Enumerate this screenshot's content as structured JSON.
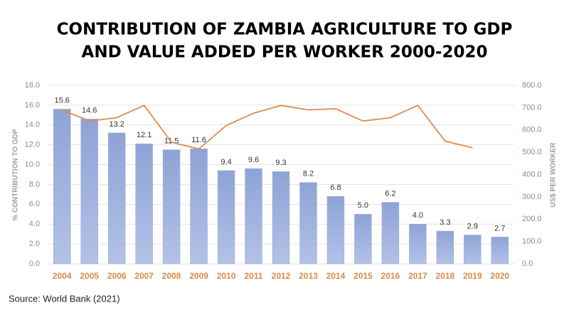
{
  "chart_data": {
    "type": "bar",
    "title": [
      "CONTRIBUTION OF ZAMBIA AGRICULTURE TO GDP",
      "AND VALUE ADDED PER WORKER 2000-2020"
    ],
    "y_label": "% CONTRIBUTION TO GDP",
    "y2_label": "US$ PER WORKER",
    "source": "Source: World Bank (2021)",
    "categories": [
      "2004",
      "2005",
      "2006",
      "2007",
      "2008",
      "2009",
      "2010",
      "2011",
      "2012",
      "2013",
      "2014",
      "2015",
      "2016",
      "2017",
      "2018",
      "2019",
      "2020"
    ],
    "series": [
      {
        "type": "bar",
        "color": "#9badda",
        "values": [
          15.6,
          14.6,
          13.2,
          12.1,
          11.5,
          11.6,
          9.4,
          9.6,
          9.3,
          8.2,
          6.8,
          5.0,
          6.2,
          4.0,
          3.3,
          2.9,
          2.7
        ],
        "value_labels": [
          "15.6",
          "14.6",
          "13.2",
          "12.1",
          "11.5",
          "11.6",
          "9.4",
          "9.6",
          "9.3",
          "8.2",
          "6.8",
          "5.0",
          "6.2",
          "4.0",
          "3.3",
          "2.9",
          "2.7"
        ]
      },
      {
        "type": "line",
        "axis": "y2",
        "color": "#e08a4e",
        "values": [
          690,
          640,
          655,
          710,
          545,
          515,
          620,
          675,
          710,
          690,
          695,
          640,
          655,
          710,
          550,
          520,
          null
        ]
      }
    ],
    "ylim": [
      0,
      18
    ],
    "yticks": [
      {
        "value": 0,
        "label": "0.0"
      },
      {
        "value": 2,
        "label": "2.0"
      },
      {
        "value": 4,
        "label": "4.0"
      },
      {
        "value": 6,
        "label": "6.0"
      },
      {
        "value": 8,
        "label": "8.0"
      },
      {
        "value": 10,
        "label": "10.0"
      },
      {
        "value": 12,
        "label": "12.0"
      },
      {
        "value": 14,
        "label": "14.0"
      },
      {
        "value": 16,
        "label": "16.0"
      },
      {
        "value": 18,
        "label": "18.0"
      }
    ],
    "y2lim": [
      0,
      800
    ],
    "y2ticks": [
      {
        "value": 0,
        "label": "0.0"
      },
      {
        "value": 100,
        "label": "100.0"
      },
      {
        "value": 200,
        "label": "200.0"
      },
      {
        "value": 300,
        "label": "300.0"
      },
      {
        "value": 400,
        "label": "400.0"
      },
      {
        "value": 500,
        "label": "500.0"
      },
      {
        "value": 600,
        "label": "600.0"
      },
      {
        "value": 700,
        "label": "700.0"
      },
      {
        "value": 800,
        "label": "800.0"
      }
    ],
    "grid": true
  }
}
